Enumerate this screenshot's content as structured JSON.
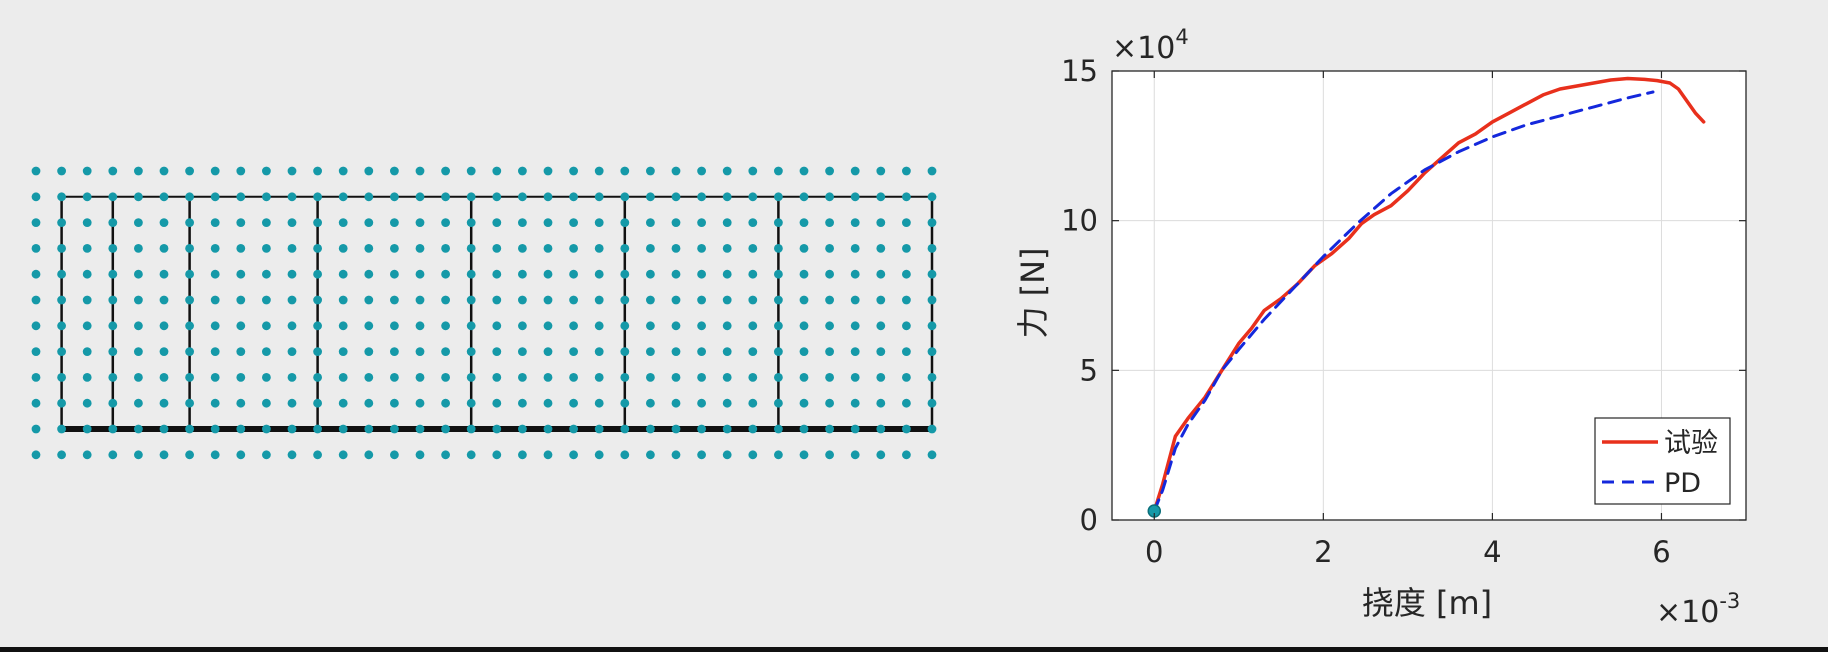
{
  "grid_figure": {
    "dot_rows": 12,
    "dot_cols": 36,
    "dot_color": "#1599a8",
    "frame_color": "#111111"
  },
  "chart_data": {
    "type": "line",
    "xlabel": "挠度 [m]",
    "ylabel": "力 [N]",
    "x_scale_label": "×10",
    "x_scale_exp": "-3",
    "y_scale_label": "×10",
    "y_scale_exp": "4",
    "xlim": [
      -0.5,
      7.0
    ],
    "ylim": [
      0,
      15
    ],
    "xticks": [
      0,
      2,
      4,
      6
    ],
    "yticks": [
      0,
      5,
      10,
      15
    ],
    "grid": true,
    "legend_position": "bottom-right",
    "series": [
      {
        "name": "试验",
        "color": "#e8301c",
        "style": "solid",
        "x": [
          0.0,
          0.1,
          0.25,
          0.4,
          0.6,
          0.8,
          1.0,
          1.15,
          1.3,
          1.5,
          1.7,
          1.9,
          2.1,
          2.3,
          2.45,
          2.6,
          2.8,
          3.0,
          3.2,
          3.4,
          3.6,
          3.8,
          4.0,
          4.2,
          4.4,
          4.6,
          4.8,
          5.0,
          5.2,
          5.4,
          5.6,
          5.8,
          5.95,
          6.1,
          6.2,
          6.3,
          6.4,
          6.5
        ],
        "y": [
          0.3,
          1.2,
          2.8,
          3.4,
          4.1,
          5.0,
          5.9,
          6.4,
          7.0,
          7.4,
          7.9,
          8.5,
          8.9,
          9.4,
          9.9,
          10.2,
          10.5,
          11.0,
          11.6,
          12.1,
          12.6,
          12.9,
          13.3,
          13.6,
          13.9,
          14.2,
          14.4,
          14.5,
          14.6,
          14.7,
          14.75,
          14.72,
          14.68,
          14.6,
          14.4,
          14.0,
          13.6,
          13.3
        ]
      },
      {
        "name": "PD",
        "color": "#1428dc",
        "style": "dashed",
        "x": [
          0.0,
          0.1,
          0.25,
          0.4,
          0.6,
          0.8,
          1.0,
          1.3,
          1.6,
          2.0,
          2.4,
          2.8,
          3.2,
          3.6,
          4.0,
          4.4,
          4.8,
          5.2,
          5.6,
          5.9
        ],
        "y": [
          0.3,
          1.0,
          2.4,
          3.2,
          4.0,
          5.0,
          5.7,
          6.7,
          7.6,
          8.8,
          9.9,
          10.9,
          11.7,
          12.3,
          12.8,
          13.2,
          13.5,
          13.8,
          14.1,
          14.3
        ]
      }
    ],
    "start_marker": {
      "x": 0.0,
      "y": 0.3,
      "color": "#1599a8"
    }
  }
}
